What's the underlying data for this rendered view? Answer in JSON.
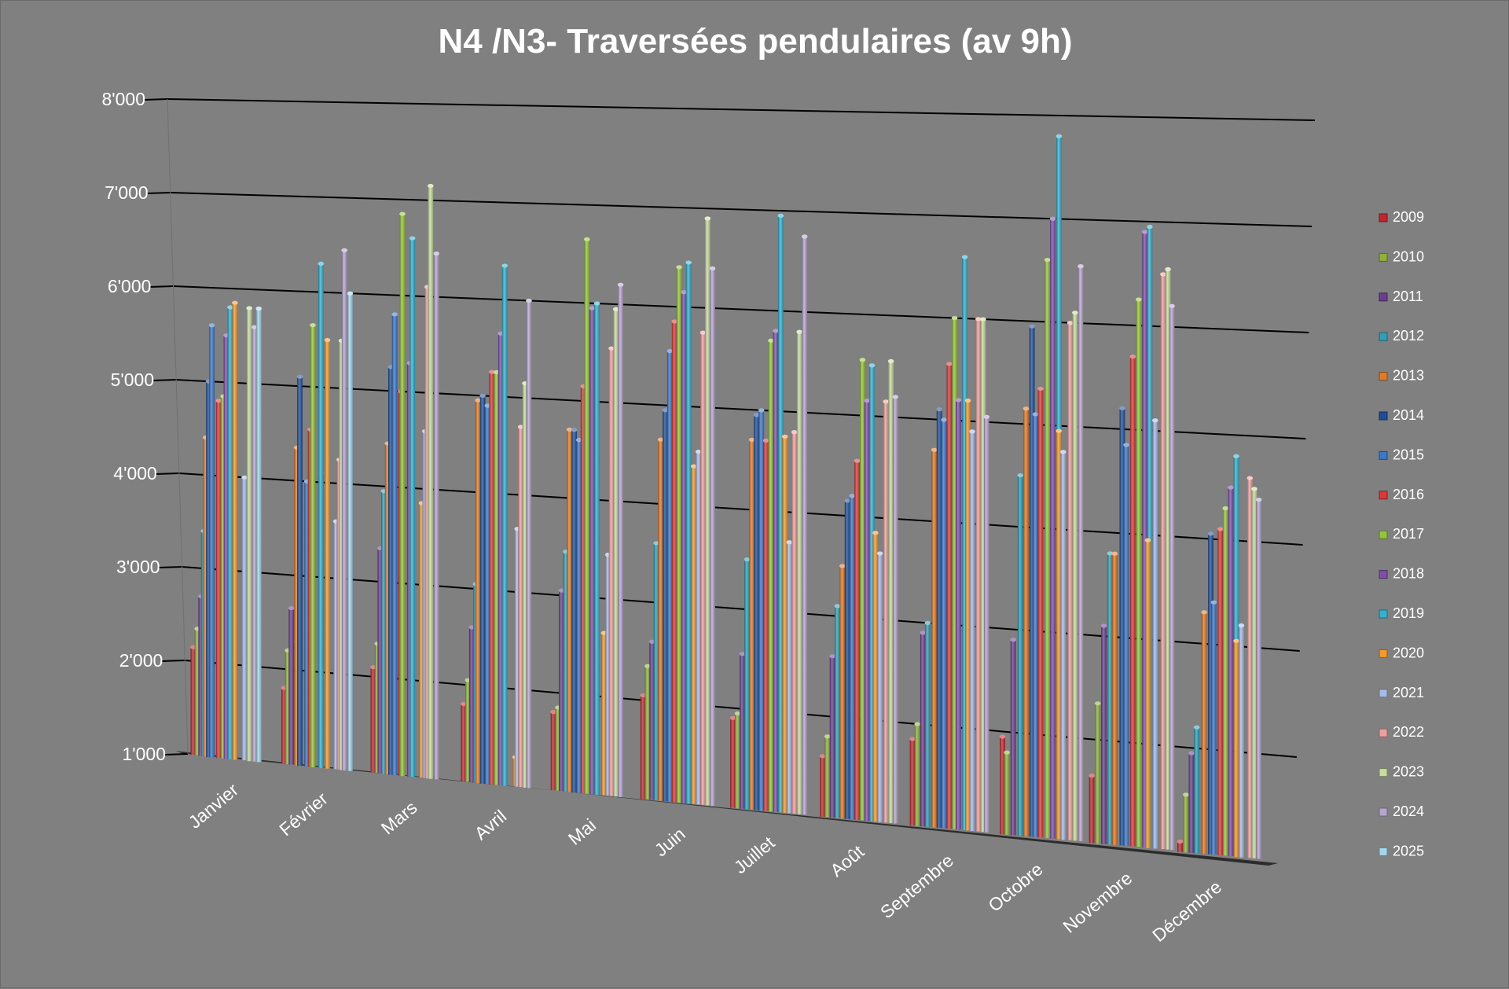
{
  "chart_data": {
    "type": "bar",
    "title": "N4 /N3- Traversées pendulaires (av 9h)",
    "xlabel": "",
    "ylabel": "",
    "ylim": [
      1000,
      8000
    ],
    "yticks": [
      "1'000",
      "2'000",
      "3'000",
      "4'000",
      "5'000",
      "6'000",
      "7'000",
      "8'000"
    ],
    "grid": true,
    "legend_position": "right",
    "categories": [
      "Janvier",
      "Février",
      "Mars",
      "Avril",
      "Mai",
      "Juin",
      "Juillet",
      "Août",
      "Septembre",
      "Octobre",
      "Novembre",
      "Décembre"
    ],
    "series": [
      {
        "name": "2009",
        "color": "#c0272d",
        "values": [
          2150,
          1800,
          2100,
          1800,
          1800,
          2050,
          1900,
          1600,
          1850,
          1950,
          1650,
          1100
        ]
      },
      {
        "name": "2010",
        "color": "#8db33a",
        "values": [
          2350,
          2200,
          2350,
          2050,
          1850,
          2350,
          1950,
          1800,
          2000,
          1800,
          2350,
          1550
        ]
      },
      {
        "name": "2011",
        "color": "#6b3f8f",
        "values": [
          2700,
          2650,
          3350,
          2600,
          3050,
          2600,
          2550,
          2600,
          2900,
          2900,
          3100,
          1950
        ]
      },
      {
        "name": "2012",
        "color": "#2fa0b8",
        "values": [
          3400,
          2300,
          3950,
          3050,
          3450,
          3600,
          3500,
          3100,
          3000,
          4500,
          3800,
          2200
        ]
      },
      {
        "name": "2013",
        "color": "#e07b28",
        "values": [
          4400,
          4350,
          4450,
          4950,
          4700,
          4650,
          4700,
          3500,
          4700,
          5150,
          3800,
          3300
        ]
      },
      {
        "name": "2014",
        "color": "#1f4e96",
        "values": [
          5000,
          5100,
          5250,
          5000,
          4700,
          4950,
          4950,
          4150,
          5100,
          5950,
          5200,
          4050
        ]
      },
      {
        "name": "2015",
        "color": "#3a78c9",
        "values": [
          5600,
          4000,
          5800,
          4900,
          4600,
          5550,
          5000,
          4200,
          5000,
          5100,
          4850,
          3400
        ]
      },
      {
        "name": "2016",
        "color": "#d8393a",
        "values": [
          4800,
          4550,
          5000,
          5250,
          5150,
          5850,
          4700,
          4550,
          5550,
          5350,
          5700,
          4100
        ]
      },
      {
        "name": "2017",
        "color": "#96c43d",
        "values": [
          4850,
          5650,
          6850,
          5250,
          6650,
          6400,
          5700,
          5550,
          6000,
          6600,
          6250,
          4300
        ]
      },
      {
        "name": "2018",
        "color": "#7d4fa8",
        "values": [
          5500,
          4100,
          5300,
          5650,
          5950,
          6150,
          5800,
          5150,
          5200,
          7000,
          6900,
          4500
        ]
      },
      {
        "name": "2019",
        "color": "#35b0cf",
        "values": [
          5800,
          6300,
          6600,
          6350,
          6000,
          6450,
          6950,
          5500,
          6600,
          7800,
          6950,
          4800
        ]
      },
      {
        "name": "2020",
        "color": "#f29a2e",
        "values": [
          5850,
          5500,
          3850,
          1300,
          2650,
          4400,
          4750,
          3850,
          5200,
          4950,
          3950,
          3050
        ]
      },
      {
        "name": "2021",
        "color": "#a9b9e6",
        "values": [
          4000,
          3600,
          4600,
          3650,
          3450,
          4550,
          3700,
          3650,
          4900,
          4750,
          5100,
          3200
        ]
      },
      {
        "name": "2022",
        "color": "#eea0a0",
        "values": [
          3700,
          4250,
          6100,
          4700,
          5550,
          5750,
          4800,
          5150,
          6000,
          6000,
          6500,
          4600
        ]
      },
      {
        "name": "2023",
        "color": "#c8dba0",
        "values": [
          5800,
          5500,
          7150,
          5150,
          5950,
          6900,
          5800,
          5550,
          6000,
          6100,
          6550,
          4500
        ]
      },
      {
        "name": "2024",
        "color": "#b6a6cc",
        "values": [
          5600,
          6450,
          6450,
          6000,
          6200,
          6400,
          6750,
          5200,
          5050,
          6550,
          6200,
          4400
        ]
      },
      {
        "name": "2025",
        "color": "#a6d6ec",
        "values": [
          5800,
          6000,
          null,
          null,
          null,
          null,
          null,
          null,
          null,
          null,
          null,
          null
        ]
      }
    ]
  }
}
